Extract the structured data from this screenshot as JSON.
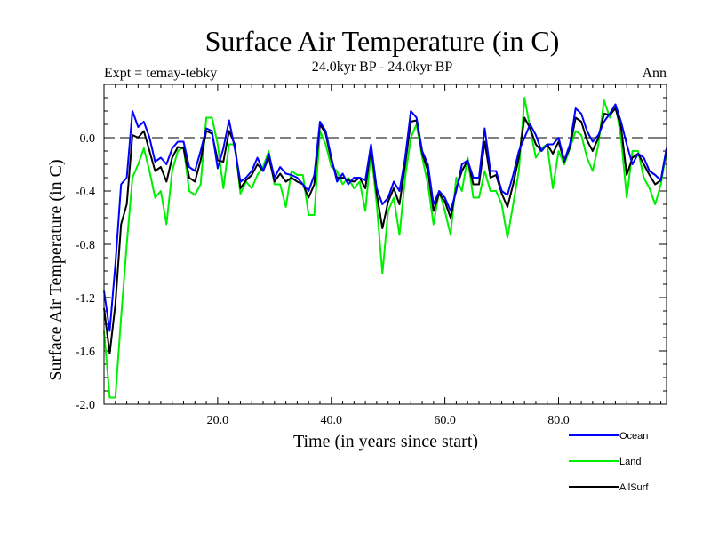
{
  "chart_data": {
    "type": "line",
    "title": "Surface Air Temperature (in C)",
    "subtitle": "24.0kyr BP - 24.0kyr BP",
    "left_label": "Expt = temay-tebky",
    "right_label": "Ann",
    "xlabel": "Time (in years since start)",
    "ylabel": "Surface Air Temperature (in C)",
    "xlim": [
      0,
      99
    ],
    "ylim": [
      -2.0,
      0.4
    ],
    "x_ticks": [
      20,
      40,
      60,
      80
    ],
    "x_tick_labels": [
      "20.0",
      "40.0",
      "60.0",
      "80.0"
    ],
    "y_ticks": [
      -2.0,
      -1.6,
      -1.2,
      -0.8,
      -0.4,
      0.0
    ],
    "y_tick_labels": [
      "-2.0",
      "-1.6",
      "-1.2",
      "-0.8",
      "-0.4",
      "0.0"
    ],
    "reference_line": 0.0,
    "legend_position": "bottom-right, below plot",
    "x": [
      0,
      1,
      2,
      3,
      4,
      5,
      6,
      7,
      8,
      9,
      10,
      11,
      12,
      13,
      14,
      15,
      16,
      17,
      18,
      19,
      20,
      21,
      22,
      23,
      24,
      25,
      26,
      27,
      28,
      29,
      30,
      31,
      32,
      33,
      34,
      35,
      36,
      37,
      38,
      39,
      40,
      41,
      42,
      43,
      44,
      45,
      46,
      47,
      48,
      49,
      50,
      51,
      52,
      53,
      54,
      55,
      56,
      57,
      58,
      59,
      60,
      61,
      62,
      63,
      64,
      65,
      66,
      67,
      68,
      69,
      70,
      71,
      72,
      73,
      74,
      75,
      76,
      77,
      78,
      79,
      80,
      81,
      82,
      83,
      84,
      85,
      86,
      87,
      88,
      89,
      90,
      91,
      92,
      93,
      94,
      95,
      96,
      97,
      98,
      99
    ],
    "series": [
      {
        "name": "Ocean",
        "color": "#0000ff",
        "values": [
          -1.15,
          -1.45,
          -0.95,
          -0.35,
          -0.3,
          0.2,
          0.08,
          0.12,
          0.0,
          -0.18,
          -0.15,
          -0.2,
          -0.08,
          -0.03,
          -0.03,
          -0.22,
          -0.25,
          -0.1,
          0.07,
          0.05,
          -0.23,
          -0.08,
          0.13,
          -0.08,
          -0.33,
          -0.3,
          -0.25,
          -0.15,
          -0.25,
          -0.12,
          -0.3,
          -0.22,
          -0.27,
          -0.28,
          -0.3,
          -0.35,
          -0.4,
          -0.28,
          0.12,
          0.05,
          -0.15,
          -0.33,
          -0.27,
          -0.35,
          -0.3,
          -0.3,
          -0.32,
          -0.05,
          -0.38,
          -0.5,
          -0.45,
          -0.33,
          -0.4,
          -0.15,
          0.2,
          0.15,
          -0.1,
          -0.2,
          -0.5,
          -0.4,
          -0.45,
          -0.55,
          -0.4,
          -0.2,
          -0.17,
          -0.3,
          -0.3,
          0.07,
          -0.25,
          -0.25,
          -0.4,
          -0.43,
          -0.28,
          -0.1,
          0.0,
          0.1,
          0.02,
          -0.1,
          -0.05,
          -0.05,
          0.0,
          -0.17,
          -0.05,
          0.22,
          0.18,
          0.05,
          -0.03,
          0.02,
          0.12,
          0.18,
          0.25,
          0.12,
          -0.05,
          -0.2,
          -0.12,
          -0.15,
          -0.25,
          -0.28,
          -0.32,
          -0.08
        ]
      },
      {
        "name": "Land",
        "color": "#00ee00",
        "values": [
          -1.45,
          -1.95,
          -1.95,
          -1.35,
          -0.8,
          -0.3,
          -0.2,
          -0.08,
          -0.25,
          -0.45,
          -0.4,
          -0.65,
          -0.25,
          -0.1,
          -0.07,
          -0.4,
          -0.43,
          -0.35,
          0.15,
          0.15,
          -0.05,
          -0.38,
          -0.05,
          -0.05,
          -0.42,
          -0.33,
          -0.38,
          -0.28,
          -0.22,
          -0.1,
          -0.35,
          -0.35,
          -0.52,
          -0.25,
          -0.28,
          -0.28,
          -0.58,
          -0.58,
          0.05,
          -0.05,
          -0.22,
          -0.25,
          -0.35,
          -0.3,
          -0.38,
          -0.33,
          -0.55,
          -0.1,
          -0.5,
          -1.02,
          -0.55,
          -0.45,
          -0.73,
          -0.3,
          0.0,
          0.1,
          -0.15,
          -0.35,
          -0.65,
          -0.4,
          -0.55,
          -0.73,
          -0.3,
          -0.4,
          -0.15,
          -0.45,
          -0.45,
          -0.25,
          -0.4,
          -0.4,
          -0.5,
          -0.75,
          -0.5,
          -0.25,
          0.3,
          0.07,
          -0.15,
          -0.08,
          -0.05,
          -0.38,
          -0.1,
          -0.2,
          -0.08,
          0.05,
          0.02,
          -0.15,
          -0.25,
          -0.05,
          0.28,
          0.15,
          0.25,
          0.0,
          -0.45,
          -0.1,
          -0.1,
          -0.3,
          -0.38,
          -0.5,
          -0.35,
          -0.1
        ]
      },
      {
        "name": "AllSurf",
        "color": "#000000",
        "values": [
          -1.28,
          -1.62,
          -1.25,
          -0.65,
          -0.5,
          0.02,
          0.0,
          0.05,
          -0.1,
          -0.25,
          -0.22,
          -0.33,
          -0.15,
          -0.07,
          -0.08,
          -0.3,
          -0.33,
          -0.17,
          0.05,
          0.03,
          -0.17,
          -0.18,
          0.05,
          -0.05,
          -0.38,
          -0.32,
          -0.28,
          -0.2,
          -0.25,
          -0.15,
          -0.33,
          -0.27,
          -0.33,
          -0.3,
          -0.33,
          -0.35,
          -0.45,
          -0.35,
          0.1,
          0.03,
          -0.17,
          -0.3,
          -0.3,
          -0.32,
          -0.33,
          -0.3,
          -0.38,
          -0.07,
          -0.42,
          -0.68,
          -0.48,
          -0.38,
          -0.5,
          -0.2,
          0.12,
          0.13,
          -0.12,
          -0.25,
          -0.55,
          -0.42,
          -0.48,
          -0.6,
          -0.38,
          -0.25,
          -0.17,
          -0.35,
          -0.35,
          -0.03,
          -0.3,
          -0.28,
          -0.42,
          -0.52,
          -0.35,
          -0.15,
          0.15,
          0.07,
          -0.05,
          -0.1,
          -0.05,
          -0.12,
          -0.03,
          -0.18,
          -0.07,
          0.15,
          0.12,
          -0.02,
          -0.1,
          0.0,
          0.18,
          0.17,
          0.22,
          0.08,
          -0.28,
          -0.15,
          -0.12,
          -0.2,
          -0.28,
          -0.35,
          -0.32,
          -0.08
        ]
      }
    ]
  }
}
